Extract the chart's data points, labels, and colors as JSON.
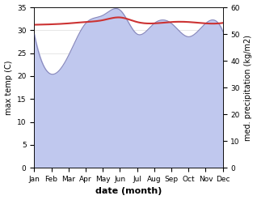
{
  "months": [
    "Jan",
    "Feb",
    "Mar",
    "Apr",
    "May",
    "Jun",
    "Jul",
    "Aug",
    "Sep",
    "Oct",
    "Nov",
    "Dec"
  ],
  "month_positions": [
    0,
    1,
    2,
    3,
    4,
    5,
    6,
    7,
    8,
    9,
    10,
    11
  ],
  "temp_line": [
    31.2,
    31.3,
    31.5,
    31.8,
    32.2,
    32.8,
    31.8,
    31.5,
    31.8,
    31.8,
    31.5,
    31.6
  ],
  "precip": [
    50,
    35,
    42,
    54,
    57,
    59,
    50,
    54,
    54,
    49,
    54,
    51
  ],
  "ylim_left": [
    0,
    35
  ],
  "ylim_right": [
    0,
    60
  ],
  "yticks_left": [
    0,
    5,
    10,
    15,
    20,
    25,
    30,
    35
  ],
  "yticks_right": [
    0,
    10,
    20,
    30,
    40,
    50,
    60
  ],
  "ylabel_left": "max temp (C)",
  "ylabel_right": "med. precipitation (kg/m2)",
  "xlabel": "date (month)",
  "fill_color": "#c0c8ee",
  "line_color_temp": "#cc3333",
  "line_color_precip": "#8888bb",
  "bg_color": "#ffffff",
  "label_fontsize": 7,
  "tick_fontsize": 6.5,
  "xlabel_fontsize": 8
}
